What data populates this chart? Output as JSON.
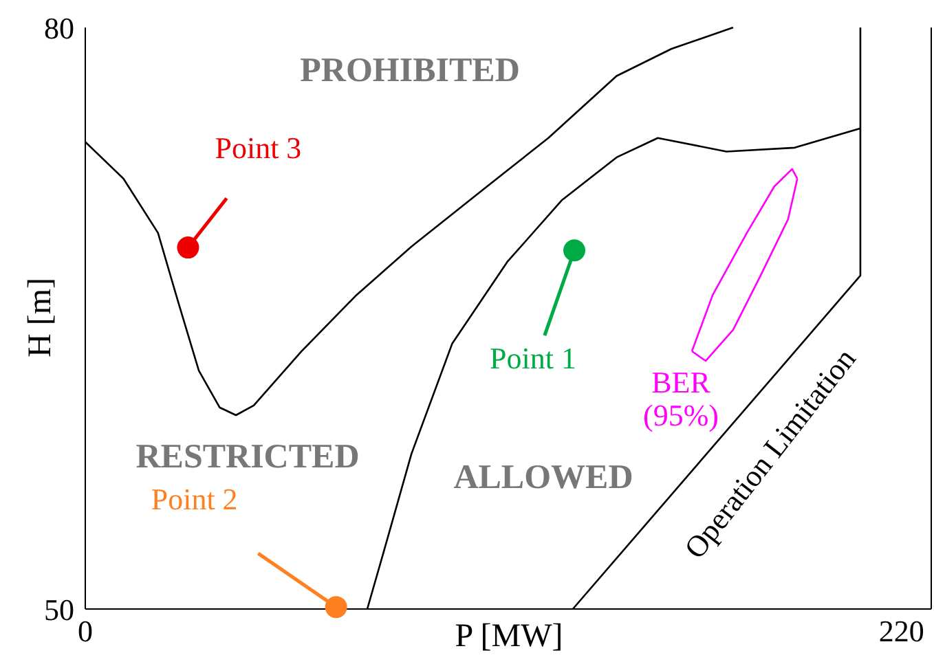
{
  "chart_data": {
    "type": "line",
    "xlabel": "P [MW]",
    "ylabel": "H [m]",
    "xlim": [
      0,
      228
    ],
    "ylim": [
      50,
      80
    ],
    "xticks": [
      0,
      220
    ],
    "yticks": [
      50,
      80
    ],
    "grid": false,
    "legend": false,
    "marker": "none",
    "line_style": "solid",
    "annotations": [
      "PROHIBITED",
      "RESTRICTED",
      "ALLOWED",
      "Operation Limitation"
    ],
    "series": [
      {
        "type": "line",
        "color": "#000000",
        "x": [
          0,
          10.3,
          19.6,
          25.1,
          30.6,
          36.2,
          40.6,
          45.4,
          58.3,
          73.1,
          87.9,
          106.3,
          124.8,
          143.2,
          158,
          174.6
        ],
        "values": [
          74.1,
          72.2,
          69.4,
          65.8,
          62.3,
          60.4,
          60.0,
          60.5,
          63.3,
          66.2,
          68.7,
          71.5,
          74.3,
          77.5,
          78.9,
          80
        ]
      },
      {
        "type": "line",
        "color": "#000000",
        "x": [
          76,
          80.5,
          87.9,
          98.9,
          113.7,
          128.5,
          143.2,
          154.3,
          172.8,
          191.2,
          208.9
        ],
        "values": [
          50,
          53.0,
          58.0,
          63.7,
          67.9,
          71.1,
          73.3,
          74.3,
          73.6,
          73.8,
          74.8
        ]
      },
      {
        "color": "#000000",
        "x": [
          208.9,
          208.9,
          131.4
        ],
        "values": [
          80,
          67.2,
          50
        ]
      },
      {
        "type": "line",
        "name": "BER (95%)",
        "color": "#ff00ff",
        "x": [
          163.5,
          169.1,
          178.3,
          185.7,
          190.5,
          191.9
        ],
        "values": [
          63.3,
          66.2,
          69.4,
          71.8,
          72.7,
          72.2
        ]
      },
      {
        "type": "line",
        "color": "#ff00ff",
        "x": [
          163.5,
          167.2,
          174.6,
          182,
          189.4,
          191.9
        ],
        "values": [
          63.3,
          62.8,
          64.4,
          67.2,
          70.1,
          72.2
        ]
      },
      {
        "type": "scatter",
        "name": "Point 1",
        "color": "#00aa44",
        "x": [
          131.8
        ],
        "values": [
          68.5
        ],
        "marker": "circle"
      },
      {
        "type": "scatter",
        "name": "Point 2",
        "color": "#ff8020",
        "x": [
          67.6
        ],
        "values": [
          50.1
        ],
        "marker": "circle"
      },
      {
        "type": "scatter",
        "name": "Point 3",
        "color": "#ee0000",
        "x": [
          27.7
        ],
        "values": [
          68.65
        ],
        "marker": "circle"
      }
    ]
  }
}
